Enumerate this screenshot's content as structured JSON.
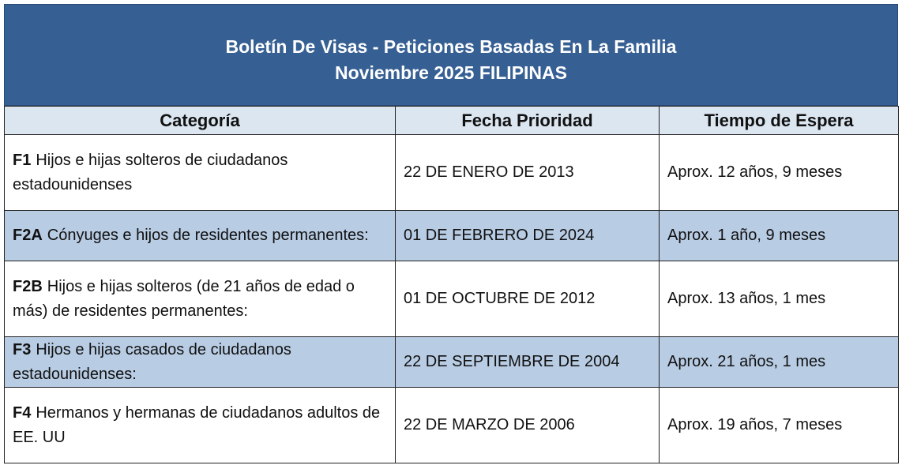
{
  "header": {
    "title": "Boletín De Visas - Peticiones Basadas En La Familia",
    "subtitle": "Noviembre 2025 FILIPINAS"
  },
  "table": {
    "columns": [
      "Categoría",
      "Fecha Prioridad",
      "Tiempo de Espera"
    ],
    "rows": [
      {
        "code": "F1",
        "description": "Hijos e hijas solteros de ciudadanos estadounidenses",
        "date": "22 DE ENERO DE 2013",
        "wait": "Aprox. 12 años, 9 meses"
      },
      {
        "code": "F2A",
        "description": "Cónyuges e hijos de residentes permanentes:",
        "date": "01 DE FEBRERO DE 2024",
        "wait": "Aprox. 1 año, 9 meses"
      },
      {
        "code": "F2B",
        "description": "Hijos e hijas solteros (de 21 años de edad o más) de residentes permanentes:",
        "date": "01 DE OCTUBRE DE 2012",
        "wait": "Aprox. 13 años, 1 mes"
      },
      {
        "code": "F3",
        "description": "Hijos e hijas casados de ciudadanos estadounidenses:",
        "date": "22 DE SEPTIEMBRE DE 2004",
        "wait": "Aprox. 21 años, 1 mes"
      },
      {
        "code": "F4",
        "description": "Hermanos y hermanas de ciudadanos adultos de EE. UU",
        "date": "22 DE MARZO DE 2006",
        "wait": "Aprox. 19 años, 7 meses"
      }
    ]
  }
}
